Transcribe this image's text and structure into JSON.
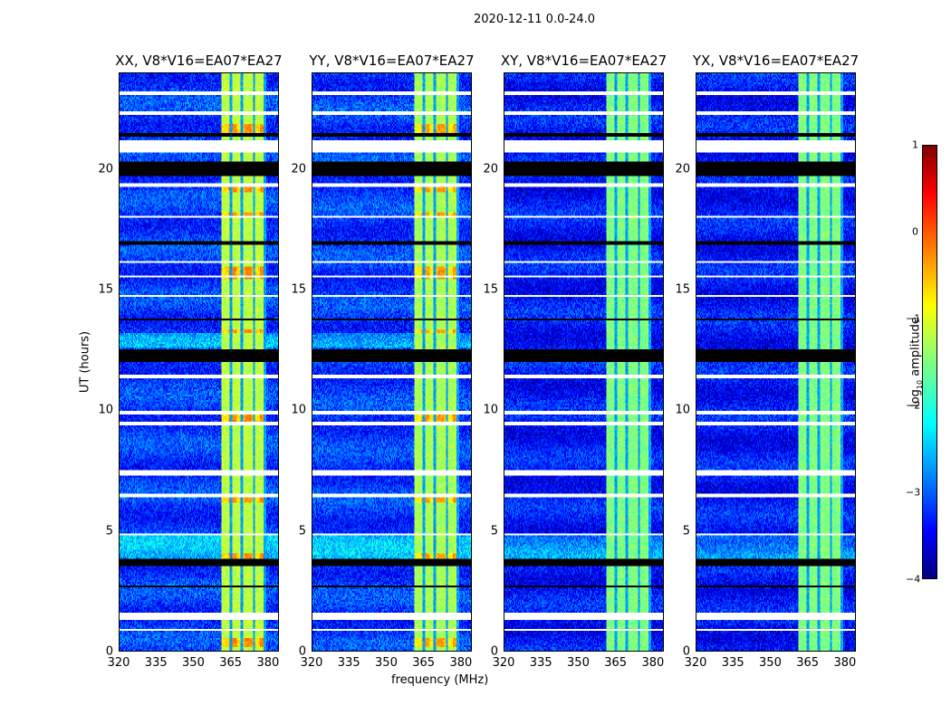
{
  "suptitle": "2020-12-11 0.0-24.0",
  "chart_data": {
    "type": "heatmap",
    "title": "2020-12-11 0.0-24.0",
    "xlabel": "frequency (MHz)",
    "ylabel": "UT (hours)",
    "xlim": [
      320,
      384.4
    ],
    "ylim": [
      0,
      24
    ],
    "xticks": [
      "320",
      "335",
      "350",
      "365",
      "380"
    ],
    "yticks": [
      "0",
      "5",
      "10",
      "15",
      "20"
    ],
    "panels": [
      {
        "title": "XX, V8*V16=EA07*EA27",
        "background_level": -3.1,
        "band_level": -1.2
      },
      {
        "title": "YY, V8*V16=EA07*EA27",
        "background_level": -3.1,
        "band_level": -1.3
      },
      {
        "title": "XY, V8*V16=EA07*EA27",
        "background_level": -3.3,
        "band_level": -1.5
      },
      {
        "title": "YX, V8*V16=EA07*EA27",
        "background_level": -3.3,
        "band_level": -1.5
      }
    ],
    "bright_band_mhz": [
      361.5,
      379.5
    ],
    "band_gaps_mhz": [
      365.2,
      369.8,
      374.6,
      379.0
    ],
    "flagged_white_hours": [
      [
        23.1,
        23.25
      ],
      [
        22.3,
        22.4
      ],
      [
        20.7,
        21.2
      ],
      [
        19.3,
        19.4
      ],
      [
        18.0,
        18.1
      ],
      [
        16.1,
        16.2
      ],
      [
        15.5,
        15.6
      ],
      [
        14.7,
        14.8
      ],
      [
        11.35,
        11.5
      ],
      [
        9.85,
        10.0
      ],
      [
        9.4,
        9.5
      ],
      [
        7.3,
        7.5
      ],
      [
        6.4,
        6.5
      ],
      [
        4.8,
        4.9
      ],
      [
        1.27,
        1.57
      ],
      [
        0.8,
        0.9
      ]
    ],
    "flagged_black_hours": [
      [
        21.4,
        21.55
      ],
      [
        19.75,
        20.3
      ],
      [
        16.9,
        17.0
      ],
      [
        13.7,
        13.8
      ],
      [
        12.0,
        12.55
      ],
      [
        3.55,
        3.85
      ],
      [
        2.6,
        2.7
      ]
    ],
    "colorbar": {
      "label": "log10 amplitude",
      "range": [
        -4,
        1
      ],
      "ticks": [
        "1",
        "0",
        "−1",
        "−2",
        "−3",
        "−4"
      ],
      "colormap": "jet"
    }
  }
}
